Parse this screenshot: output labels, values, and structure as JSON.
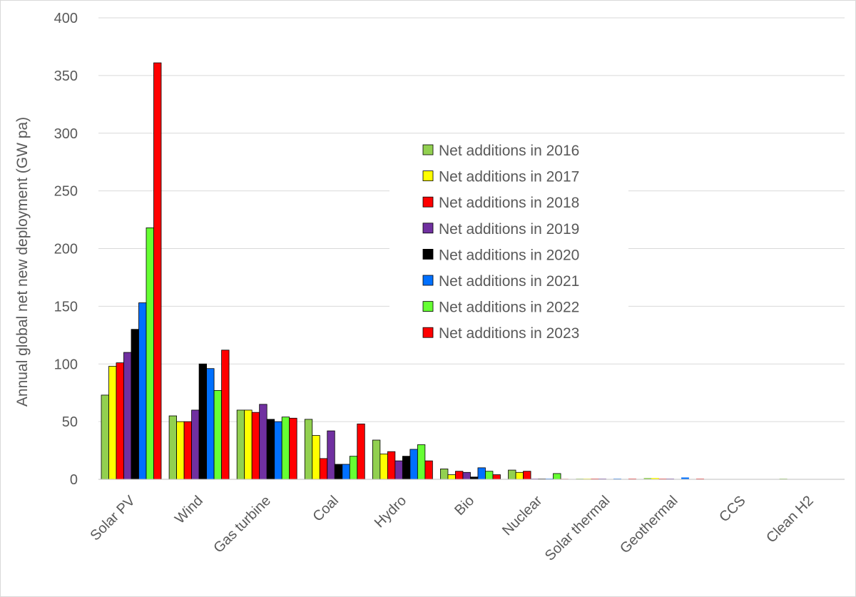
{
  "chart_data": {
    "type": "bar",
    "title": "",
    "xlabel": "",
    "ylabel": "Annual global net new deployment (GW pa)",
    "ylim": [
      0,
      400
    ],
    "yticks": [
      0,
      50,
      100,
      150,
      200,
      250,
      300,
      350,
      400
    ],
    "grid": true,
    "legend_position": "center-right",
    "categories": [
      "Solar PV",
      "Wind",
      "Gas turbine",
      "Coal",
      "Hydro",
      "Bio",
      "Nuclear",
      "Solar thermal",
      "Geothermal",
      "CCS",
      "Clean H2"
    ],
    "series": [
      {
        "name": "Net additions in 2016",
        "color": "#92d050",
        "values": [
          73,
          55,
          60,
          52,
          34,
          9,
          8,
          0.5,
          1,
          0,
          0.5
        ]
      },
      {
        "name": "Net additions in 2017",
        "color": "#ffff00",
        "values": [
          98,
          50,
          60,
          38,
          22,
          4,
          6,
          0.5,
          1,
          0,
          0
        ]
      },
      {
        "name": "Net additions in 2018",
        "color": "#ff0000",
        "values": [
          101,
          50,
          58,
          18,
          24,
          7,
          7,
          0.5,
          0.5,
          0,
          0
        ]
      },
      {
        "name": "Net additions in 2019",
        "color": "#7030a0",
        "values": [
          110,
          60,
          65,
          42,
          16,
          6,
          0.5,
          0.5,
          0.5,
          0,
          0
        ]
      },
      {
        "name": "Net additions in 2020",
        "color": "#000000",
        "values": [
          130,
          100,
          52,
          13,
          20,
          2,
          0.5,
          0,
          0,
          0,
          0
        ]
      },
      {
        "name": "Net additions in 2021",
        "color": "#0070ff",
        "values": [
          153,
          96,
          50,
          13,
          26,
          10,
          0.5,
          0.5,
          1.5,
          0,
          0
        ]
      },
      {
        "name": "Net additions in 2022",
        "color": "#66ff33",
        "values": [
          218,
          77,
          54,
          20,
          30,
          7,
          5,
          0,
          0,
          0,
          0
        ]
      },
      {
        "name": "Net additions in 2023",
        "color": "#ff0000",
        "values": [
          361,
          112,
          53,
          48,
          16,
          4,
          0.3,
          0.5,
          0.5,
          0,
          0
        ]
      }
    ]
  }
}
